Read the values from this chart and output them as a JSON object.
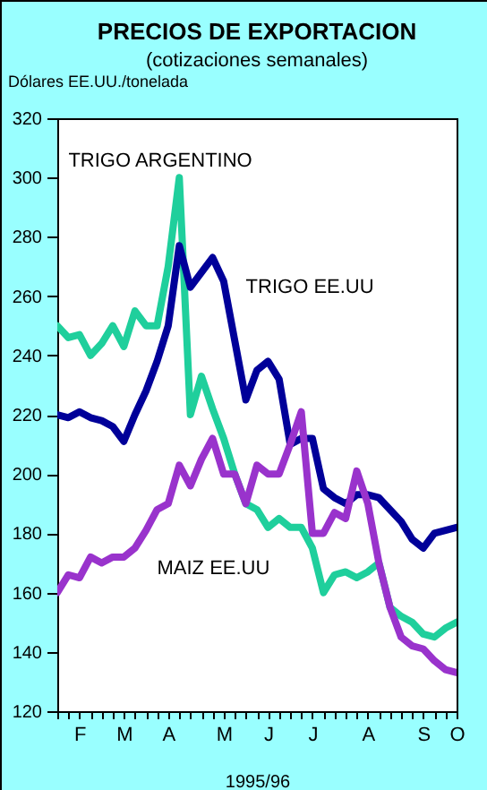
{
  "chart_data": {
    "type": "line",
    "title": "PRECIOS DE EXPORTACION",
    "subtitle": "(cotizaciones semanales)",
    "ylabel": "Dólares EE.UU./tonelada",
    "xlabel": "1995/96",
    "categories": [
      null,
      null,
      "F",
      null,
      null,
      null,
      "M",
      null,
      null,
      null,
      "A",
      null,
      null,
      null,
      null,
      "M",
      null,
      null,
      null,
      "J",
      null,
      null,
      null,
      "J",
      null,
      null,
      null,
      null,
      "A",
      null,
      null,
      null,
      null,
      "S",
      null,
      null,
      "O"
    ],
    "ylim": [
      120,
      320
    ],
    "yticks": [
      120,
      140,
      160,
      180,
      200,
      220,
      240,
      260,
      280,
      300,
      320
    ],
    "grid": false,
    "legend": false,
    "marker": "none",
    "line_style": "solid",
    "series": [
      {
        "name": "TRIGO ARGENTINO",
        "color": "#1fcf9c",
        "values": [
          250,
          246,
          247,
          240,
          244,
          250,
          243,
          255,
          250,
          250,
          270,
          300,
          220,
          233,
          222,
          212,
          200,
          190,
          188,
          182,
          185,
          182,
          182,
          175,
          160,
          166,
          167,
          165,
          167,
          170,
          155,
          152,
          150,
          146,
          145,
          148,
          150
        ]
      },
      {
        "name": "TRIGO EE.UU",
        "color": "#000099",
        "values": [
          220,
          219,
          221,
          219,
          218,
          216,
          211,
          220,
          228,
          238,
          250,
          277,
          263,
          268,
          273,
          265,
          245,
          225,
          235,
          238,
          232,
          210,
          212,
          212,
          195,
          192,
          190,
          193,
          193,
          192,
          188,
          184,
          178,
          175,
          180,
          181,
          182
        ]
      },
      {
        "name": "MAIZ EE.UU",
        "color": "#9933cc",
        "values": [
          160,
          166,
          165,
          172,
          170,
          172,
          172,
          175,
          181,
          188,
          190,
          203,
          196,
          205,
          212,
          200,
          200,
          190,
          203,
          200,
          200,
          210,
          221,
          180,
          180,
          187,
          185,
          201,
          190,
          170,
          155,
          145,
          142,
          141,
          137,
          134,
          133
        ]
      }
    ]
  }
}
